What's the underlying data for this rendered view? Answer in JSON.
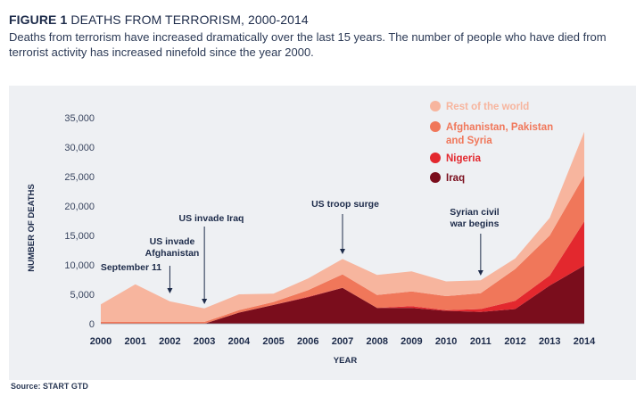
{
  "header": {
    "figure_number": "FIGURE 1",
    "figure_title": "DEATHS FROM TERRORISM, 2000-2014",
    "subtitle": "Deaths from terrorism have increased dramatically over the last 15 years. The number of people who have died from terrorist activity has increased ninefold since the year 2000."
  },
  "source": "Source: START GTD",
  "colors": {
    "rest_of_world": "#f7b59e",
    "afpak_syria": "#f0775a",
    "nigeria": "#e3282e",
    "iraq": "#7a0d1c",
    "panel_bg": "#eef0f3",
    "text": "#1d2b4a"
  },
  "chart_data": {
    "type": "area",
    "stacked": true,
    "title": "DEATHS FROM TERRORISM, 2000-2014",
    "xlabel": "YEAR",
    "ylabel": "NUMBER OF DEATHS",
    "x": [
      "2000",
      "2001",
      "2002",
      "2003",
      "2004",
      "2005",
      "2006",
      "2007",
      "2008",
      "2009",
      "2010",
      "2011",
      "2012",
      "2013",
      "2014"
    ],
    "ylim": [
      0,
      35000
    ],
    "yticks": [
      "0",
      "5,000",
      "10,000",
      "15,000",
      "20,000",
      "25,000",
      "30,000",
      "35,000"
    ],
    "ytick_values": [
      0,
      5000,
      10000,
      15000,
      20000,
      25000,
      30000,
      35000
    ],
    "grid": false,
    "legend_position": "top-right",
    "series": [
      {
        "name": "Iraq",
        "values": [
          0,
          0,
          0,
          0,
          1900,
          3200,
          4500,
          6100,
          2700,
          2700,
          2200,
          2000,
          2500,
          6500,
          9900
        ]
      },
      {
        "name": "Nigeria",
        "values": [
          0,
          0,
          0,
          0,
          0,
          0,
          100,
          0,
          0,
          300,
          100,
          500,
          1400,
          1700,
          7500
        ]
      },
      {
        "name": "Afghanistan, Pakistan and Syria",
        "values": [
          300,
          300,
          300,
          300,
          400,
          500,
          1100,
          2300,
          2200,
          2500,
          2400,
          2700,
          5400,
          6800,
          7800
        ]
      },
      {
        "name": "Rest of the world",
        "values": [
          3000,
          6400,
          3500,
          2300,
          2700,
          1400,
          2000,
          2600,
          3400,
          3400,
          2500,
          2200,
          1800,
          3000,
          7400
        ]
      }
    ],
    "annotations": [
      {
        "year": "2000.8",
        "lines": [
          "September 11"
        ]
      },
      {
        "year": "2002",
        "lines": [
          "US invade",
          "Afghanistan"
        ]
      },
      {
        "year": "2003",
        "lines": [
          "US invade Iraq"
        ]
      },
      {
        "year": "2007",
        "lines": [
          "US troop surge"
        ]
      },
      {
        "year": "2011",
        "lines": [
          "Syrian civil",
          "war begins"
        ]
      }
    ]
  }
}
